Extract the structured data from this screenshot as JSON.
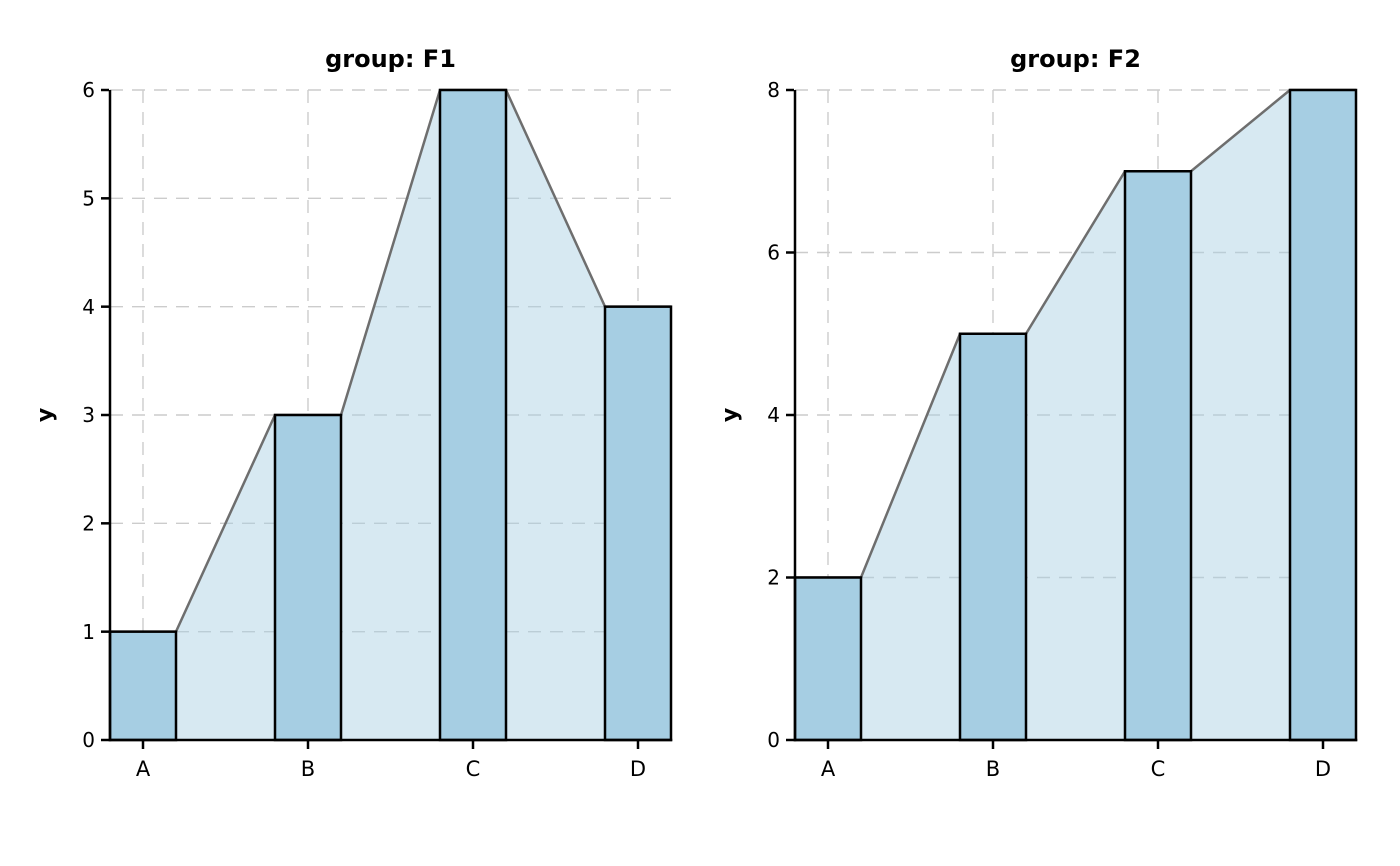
{
  "figure": {
    "background": "#ffffff"
  },
  "chart_data": [
    {
      "type": "bar",
      "subtype": "bar-with-area-profile",
      "title": "group: F1",
      "xlabel": "",
      "ylabel": "y",
      "categories": [
        "A",
        "B",
        "C",
        "D"
      ],
      "values": [
        1,
        3,
        6,
        4
      ],
      "yticks": [
        0,
        1,
        2,
        3,
        4,
        5,
        6
      ],
      "ylim": [
        0,
        6
      ],
      "xlim": [
        -0.2,
        3.2
      ],
      "bar_width": 0.4,
      "grid": "dashed",
      "legend": "none"
    },
    {
      "type": "bar",
      "subtype": "bar-with-area-profile",
      "title": "group: F2",
      "xlabel": "",
      "ylabel": "y",
      "categories": [
        "A",
        "B",
        "C",
        "D"
      ],
      "values": [
        2,
        5,
        7,
        8
      ],
      "yticks": [
        0,
        2,
        4,
        6,
        8
      ],
      "ylim": [
        0,
        8
      ],
      "xlim": [
        -0.2,
        3.2
      ],
      "bar_width": 0.4,
      "grid": "dashed",
      "legend": "none"
    }
  ],
  "style": {
    "bar_fill": "#a6cee3",
    "area_fill": "rgba(166,206,227,0.45)",
    "profile_line_color": "#6e6e6e",
    "grid_color": "#cccccc",
    "edge_color": "#000000",
    "spine_color": "#000000",
    "text_color": "#000000"
  }
}
